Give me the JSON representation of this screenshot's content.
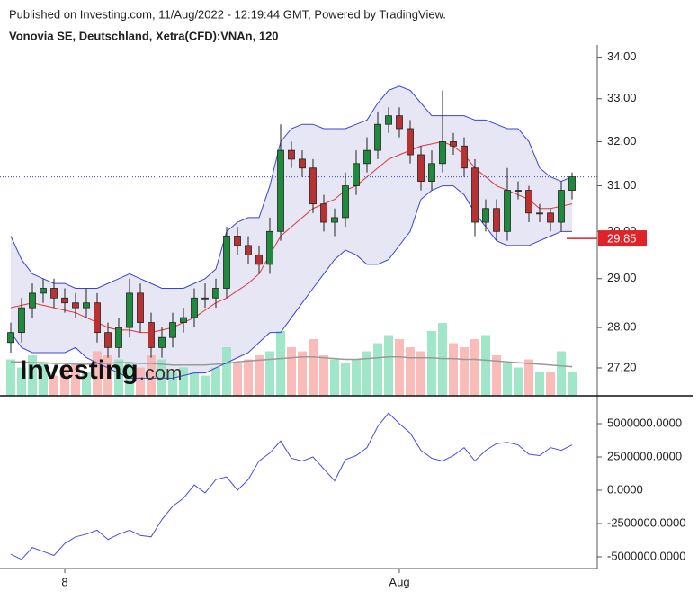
{
  "header": {
    "published": "Published on Investing.com, 11/Aug/2022 - 12:19:44 GMT, Powered by TradingView.",
    "symbol": "Vonovia SE, Deutschland, Xetra(CFD):VNAn, 120"
  },
  "watermark": {
    "brand": "Investing",
    "suffix": ".com"
  },
  "chart_data": [
    {
      "type": "candlestick",
      "categories": [
        null,
        null,
        null,
        null,
        null,
        "8",
        null,
        null,
        null,
        null,
        null,
        null,
        null,
        null,
        null,
        null,
        null,
        null,
        null,
        null,
        null,
        null,
        null,
        null,
        null,
        null,
        null,
        null,
        null,
        null,
        null,
        null,
        null,
        null,
        null,
        null,
        "Aug",
        null,
        null,
        null,
        null,
        null,
        null,
        null,
        null,
        null,
        null,
        null,
        null,
        null,
        null,
        null,
        null
      ],
      "open": [
        27.7,
        27.9,
        28.4,
        28.7,
        28.8,
        28.6,
        28.5,
        28.4,
        28.5,
        27.9,
        27.6,
        28.0,
        28.7,
        28.1,
        27.6,
        27.8,
        28.1,
        28.2,
        28.6,
        28.6,
        28.8,
        29.9,
        29.7,
        29.5,
        29.3,
        30.0,
        31.8,
        31.6,
        31.4,
        30.6,
        30.2,
        30.3,
        31.0,
        31.5,
        31.8,
        32.4,
        32.6,
        32.3,
        31.7,
        31.1,
        31.5,
        32.0,
        31.9,
        31.4,
        30.2,
        30.5,
        30.0,
        30.9,
        30.9,
        30.4,
        30.4,
        30.2,
        30.9
      ],
      "high": [
        28.1,
        28.6,
        28.9,
        29.0,
        29.0,
        28.8,
        28.7,
        28.8,
        28.7,
        28.1,
        28.2,
        29.0,
        28.9,
        28.3,
        28.0,
        28.3,
        28.4,
        28.8,
        28.9,
        29.0,
        30.1,
        30.1,
        29.9,
        29.7,
        30.3,
        32.4,
        32.0,
        31.8,
        31.6,
        30.8,
        30.5,
        31.3,
        31.8,
        32.1,
        32.7,
        32.8,
        32.8,
        32.5,
        31.9,
        31.8,
        33.2,
        32.2,
        32.1,
        31.6,
        30.7,
        30.7,
        31.4,
        31.1,
        31.0,
        30.6,
        30.5,
        31.1,
        31.3
      ],
      "low": [
        27.5,
        27.7,
        28.2,
        28.5,
        28.4,
        28.3,
        28.2,
        28.2,
        27.7,
        27.4,
        27.4,
        27.8,
        27.9,
        27.4,
        27.4,
        27.6,
        27.9,
        28.0,
        28.4,
        28.4,
        28.6,
        29.5,
        29.3,
        29.1,
        29.1,
        29.8,
        31.4,
        31.2,
        30.4,
        30.0,
        29.9,
        30.1,
        30.8,
        31.3,
        31.6,
        32.2,
        32.1,
        31.5,
        30.9,
        30.9,
        31.3,
        31.7,
        31.2,
        29.9,
        30.0,
        29.8,
        29.8,
        30.7,
        30.2,
        30.2,
        30.0,
        30.0,
        30.7
      ],
      "close": [
        27.9,
        28.4,
        28.7,
        28.8,
        28.6,
        28.5,
        28.4,
        28.5,
        27.9,
        27.6,
        28.0,
        28.7,
        28.1,
        27.6,
        27.8,
        28.1,
        28.2,
        28.6,
        28.6,
        28.8,
        29.9,
        29.7,
        29.5,
        29.3,
        30.0,
        31.8,
        31.6,
        31.4,
        30.6,
        30.2,
        30.3,
        31.0,
        31.5,
        31.8,
        32.4,
        32.6,
        32.3,
        31.7,
        31.1,
        31.5,
        32.0,
        31.9,
        31.4,
        30.2,
        30.5,
        30.0,
        30.9,
        30.9,
        30.4,
        30.4,
        30.2,
        30.9,
        31.2
      ],
      "up_color": "#1f8a3c",
      "down_color": "#b83232",
      "log_scale": true,
      "ylim": [
        26.66,
        34.3
      ],
      "yticks": [
        {
          "value": 34,
          "label": "34.00"
        },
        {
          "value": 33,
          "label": "33.00"
        },
        {
          "value": 32,
          "label": "32.00"
        },
        {
          "value": 31,
          "label": "31.00"
        },
        {
          "value": 30,
          "label": "30.00"
        },
        {
          "value": 29,
          "label": "29.00"
        },
        {
          "value": 28,
          "label": "28.00"
        },
        {
          "value": 27.2,
          "label": "27.20"
        }
      ],
      "sma": {
        "color": "#e0353b",
        "values": [
          28.4,
          28.45,
          28.5,
          28.45,
          28.4,
          28.35,
          28.3,
          28.2,
          28.1,
          28.0,
          27.95,
          27.95,
          27.9,
          27.9,
          27.95,
          28.0,
          28.1,
          28.2,
          28.35,
          28.5,
          28.6,
          28.75,
          28.9,
          29.1,
          29.5,
          29.9,
          30.1,
          30.3,
          30.5,
          30.6,
          30.7,
          30.9,
          31.0,
          31.2,
          31.4,
          31.6,
          31.7,
          31.8,
          31.9,
          31.95,
          32.0,
          31.9,
          31.7,
          31.4,
          31.2,
          31.0,
          30.9,
          30.8,
          30.7,
          30.5,
          30.5,
          30.55,
          30.6
        ]
      },
      "upper": {
        "color": "#3b44d6",
        "values": [
          29.9,
          29.4,
          29.1,
          29.0,
          28.9,
          28.9,
          28.8,
          28.8,
          28.8,
          28.9,
          29.0,
          29.1,
          29.0,
          28.9,
          28.8,
          28.8,
          28.8,
          28.9,
          29.0,
          29.2,
          30.0,
          30.2,
          30.3,
          30.3,
          31.0,
          32.0,
          32.3,
          32.4,
          32.4,
          32.3,
          32.3,
          32.3,
          32.4,
          32.5,
          32.9,
          33.2,
          33.3,
          33.2,
          32.9,
          32.6,
          32.6,
          32.6,
          32.6,
          32.5,
          32.5,
          32.4,
          32.3,
          32.3,
          32.0,
          31.4,
          31.2,
          31.1,
          31.2
        ]
      },
      "lower": {
        "color": "#3b44d6",
        "values": [
          27.9,
          27.6,
          27.5,
          27.5,
          27.5,
          27.5,
          27.6,
          27.4,
          27.3,
          27.2,
          27.1,
          27.0,
          27.0,
          27.0,
          27.0,
          27.0,
          27.05,
          27.1,
          27.1,
          27.2,
          27.3,
          27.4,
          27.5,
          27.7,
          27.9,
          27.9,
          28.2,
          28.5,
          28.8,
          29.1,
          29.4,
          29.6,
          29.5,
          29.3,
          29.3,
          29.4,
          29.7,
          30.0,
          30.7,
          30.9,
          31.0,
          31.0,
          30.8,
          30.4,
          30.1,
          29.8,
          29.7,
          29.7,
          29.7,
          29.8,
          29.9,
          30.0,
          30.0
        ]
      },
      "band_fill": "#e3e3f3",
      "volume": {
        "lim": [
          0,
          100
        ],
        "up_color": "#8fe3bf",
        "down_color": "#f8b0ab",
        "values": [
          45,
          35,
          50,
          40,
          25,
          35,
          40,
          30,
          55,
          50,
          45,
          40,
          35,
          50,
          45,
          30,
          35,
          30,
          25,
          35,
          60,
          40,
          45,
          50,
          55,
          80,
          60,
          55,
          70,
          50,
          45,
          40,
          45,
          55,
          65,
          75,
          70,
          60,
          55,
          80,
          90,
          65,
          60,
          70,
          75,
          50,
          40,
          35,
          45,
          30,
          30,
          55,
          30
        ],
        "ma": {
          "color": "#999999",
          "values": [
            42,
            42,
            41,
            41,
            40,
            40,
            39,
            39,
            40,
            40,
            41,
            41,
            40,
            40,
            39,
            38,
            38,
            38,
            38,
            39,
            40,
            42,
            43,
            44,
            45,
            46,
            47,
            48,
            48,
            47,
            46,
            45,
            45,
            46,
            47,
            48,
            48,
            47,
            47,
            47,
            46,
            46,
            45,
            45,
            44,
            43,
            42,
            41,
            40,
            39,
            38,
            37,
            36
          ]
        }
      },
      "last_line": {
        "value": 31.2,
        "color": "#3b44d6"
      },
      "price_label": {
        "value": 29.85,
        "color": "#e0222a"
      }
    },
    {
      "type": "line",
      "series": [
        {
          "color": "#4a4ee0",
          "values": [
            -4800000,
            -5200000,
            -4300000,
            -4600000,
            -4900000,
            -4000000,
            -3500000,
            -3300000,
            -3000000,
            -3700000,
            -3300000,
            -3000000,
            -3400000,
            -3500000,
            -2200000,
            -1200000,
            -600000,
            400000,
            -200000,
            800000,
            1000000,
            0,
            800000,
            2200000,
            2800000,
            3700000,
            2400000,
            2200000,
            2500000,
            1600000,
            700000,
            2300000,
            2600000,
            3200000,
            4800000,
            5800000,
            5000000,
            4300000,
            3000000,
            2400000,
            2200000,
            2600000,
            3200000,
            2200000,
            3000000,
            3500000,
            3600000,
            3400000,
            2700000,
            2600000,
            3200000,
            3000000,
            3400000
          ]
        }
      ],
      "ylim": [
        -5880000,
        6960000
      ],
      "yticks": [
        {
          "value": 5000000,
          "label": "5000000.0000"
        },
        {
          "value": 2500000,
          "label": "2500000.0000"
        },
        {
          "value": 0,
          "label": "0.0000"
        },
        {
          "value": -2500000,
          "label": "-2500000.0000"
        },
        {
          "value": -5000000,
          "label": "-5000000.0000"
        }
      ]
    }
  ]
}
